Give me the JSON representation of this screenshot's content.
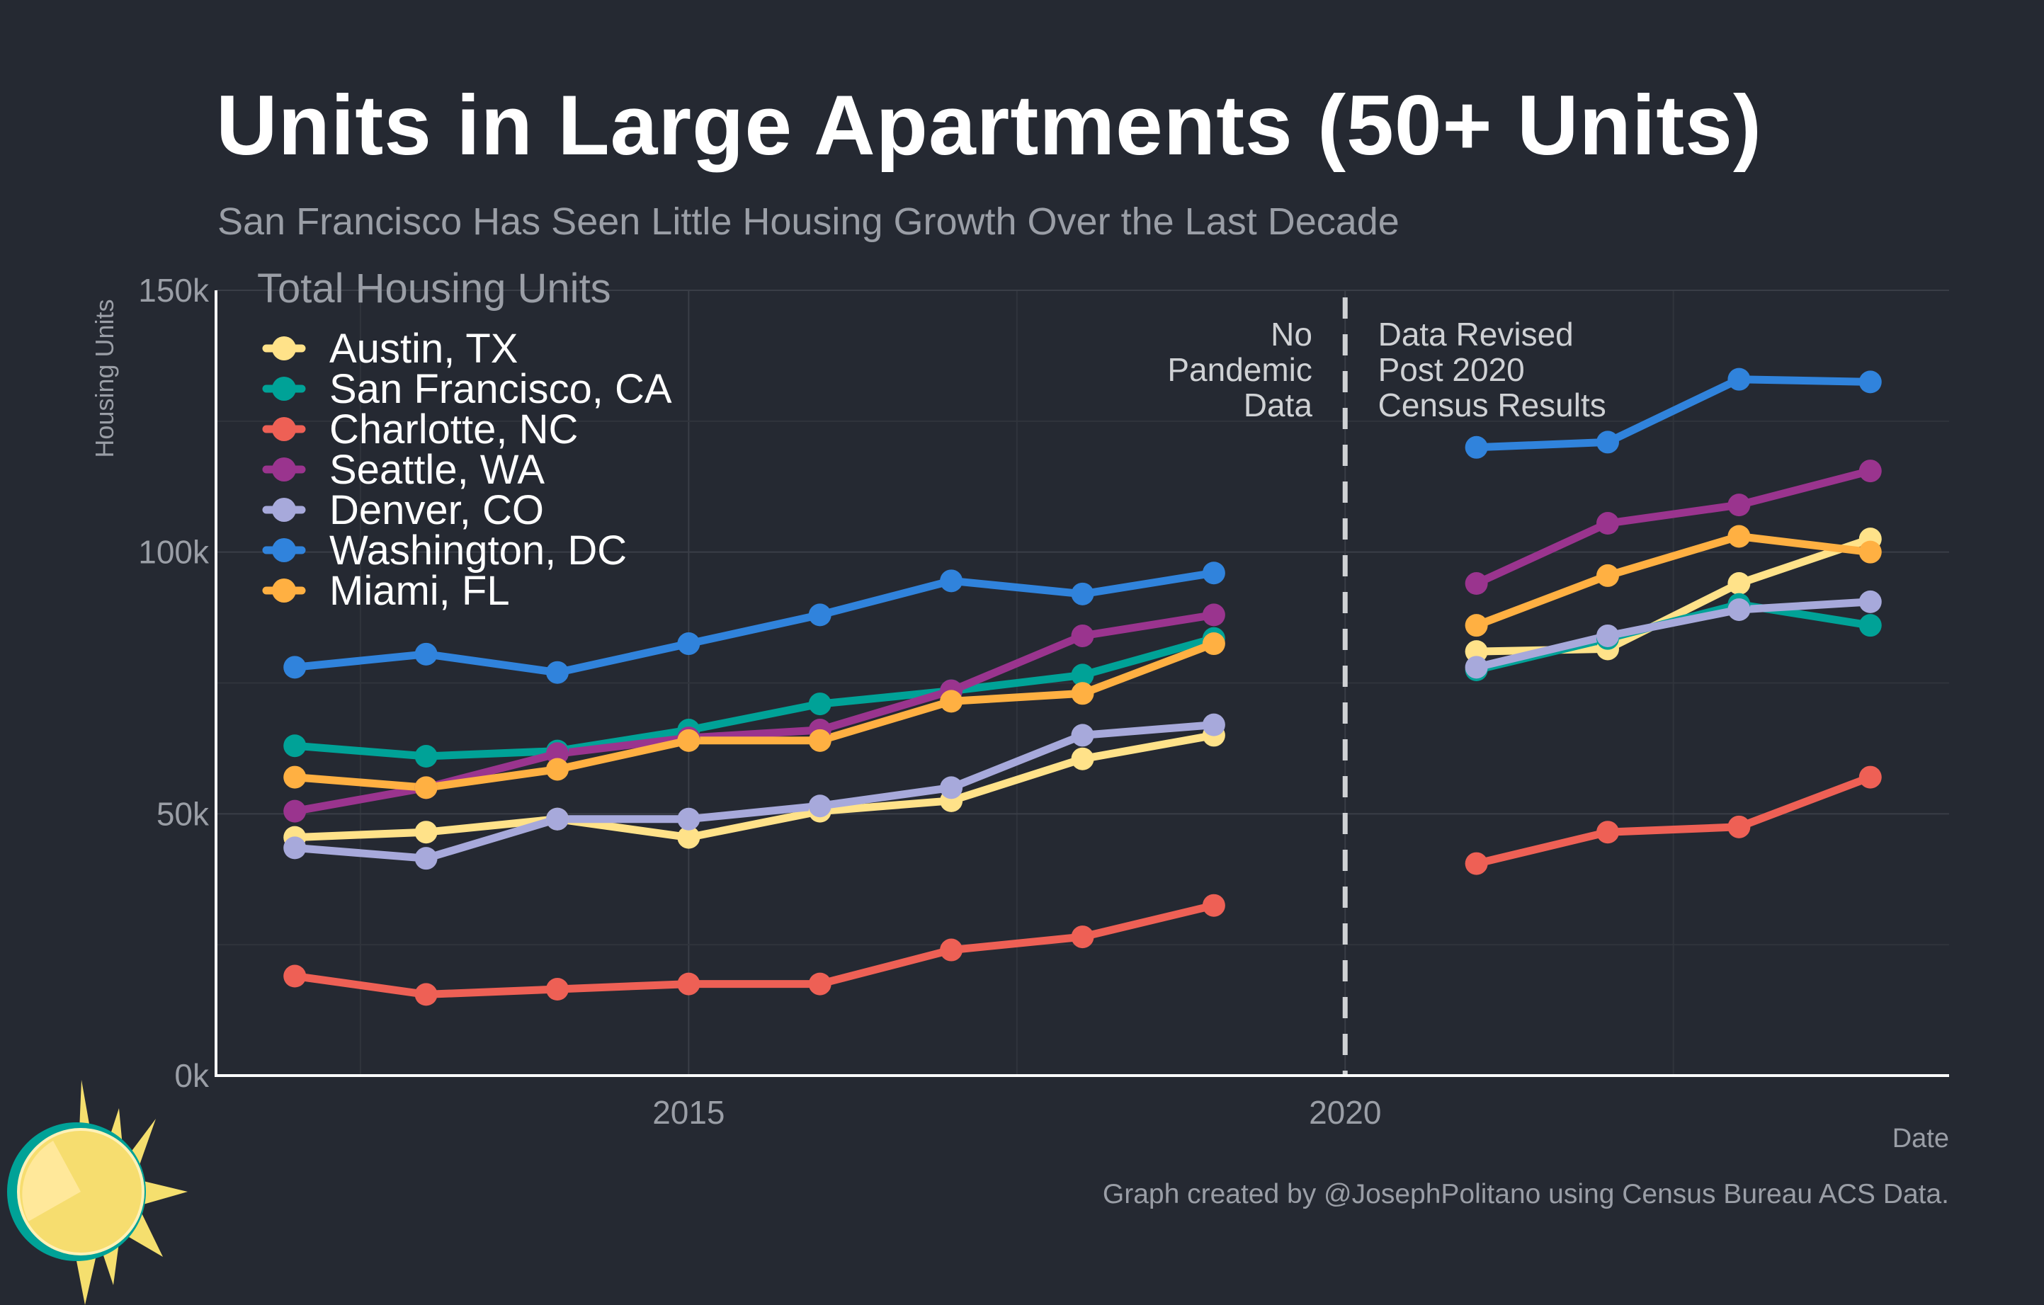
{
  "header": {
    "title": "Units in Large Apartments (50+ Units)",
    "subtitle": "San Francisco Has Seen Little Housing Growth Over the Last Decade"
  },
  "footer": {
    "caption": "Graph created by @JosephPolitano using Census Bureau ACS Data."
  },
  "chart_data": {
    "type": "line",
    "title": "Units in Large Apartments (50+ Units)",
    "subtitle": "San Francisco Has Seen Little Housing Growth Over the Last Decade",
    "xlabel": "Date",
    "ylabel": "Housing Units",
    "xlim": [
      2011.4,
      2024.6
    ],
    "ylim": [
      0,
      150000
    ],
    "x_ticks": [
      {
        "value": 2015,
        "label": "2015"
      },
      {
        "value": 2020,
        "label": "2020"
      }
    ],
    "x_minor_grid": [
      2012.5,
      2017.5,
      2022.5
    ],
    "y_ticks": [
      {
        "value": 0,
        "label": "0k"
      },
      {
        "value": 50000,
        "label": "50k"
      },
      {
        "value": 100000,
        "label": "100k"
      },
      {
        "value": 150000,
        "label": "150k"
      }
    ],
    "y_minor_grid": [
      25000,
      75000,
      125000
    ],
    "grid": true,
    "legend_title": "Total Housing Units",
    "legend_position": "top-left",
    "annotations": [
      {
        "x": 2020,
        "style": "dashed-vertical-line",
        "color": "#cfd1d4"
      },
      {
        "text": [
          "No",
          "Pandemic",
          "Data"
        ],
        "align": "right",
        "anchor_x": 2019.75
      },
      {
        "text": [
          "Data Revised",
          "Post 2020",
          "Census Results"
        ],
        "align": "left",
        "anchor_x": 2020.25
      }
    ],
    "series": [
      {
        "name": "Austin, TX",
        "color": "#ffe289",
        "points": [
          [
            2012,
            45500
          ],
          [
            2013,
            46500
          ],
          [
            2014,
            49000
          ],
          [
            2015,
            45500
          ],
          [
            2016,
            50500
          ],
          [
            2017,
            52500
          ],
          [
            2018,
            60500
          ],
          [
            2019,
            65000
          ],
          [
            2021,
            81000
          ],
          [
            2022,
            81500
          ],
          [
            2023,
            94000
          ],
          [
            2024,
            102500
          ]
        ]
      },
      {
        "name": "San Francisco, CA",
        "color": "#00a297",
        "points": [
          [
            2012,
            63000
          ],
          [
            2013,
            61000
          ],
          [
            2014,
            62000
          ],
          [
            2015,
            66000
          ],
          [
            2016,
            71000
          ],
          [
            2017,
            73500
          ],
          [
            2018,
            76500
          ],
          [
            2019,
            83500
          ],
          [
            2021,
            77500
          ],
          [
            2022,
            83500
          ],
          [
            2023,
            90000
          ],
          [
            2024,
            86000
          ]
        ]
      },
      {
        "name": "Charlotte, NC",
        "color": "#ee6055",
        "points": [
          [
            2012,
            19000
          ],
          [
            2013,
            15500
          ],
          [
            2014,
            16500
          ],
          [
            2015,
            17500
          ],
          [
            2016,
            17500
          ],
          [
            2017,
            24000
          ],
          [
            2018,
            26500
          ],
          [
            2019,
            32500
          ],
          [
            2021,
            40500
          ],
          [
            2022,
            46500
          ],
          [
            2023,
            47500
          ],
          [
            2024,
            57000
          ]
        ]
      },
      {
        "name": "Seattle, WA",
        "color": "#9a348e",
        "points": [
          [
            2012,
            50500
          ],
          [
            2013,
            55000
          ],
          [
            2014,
            61500
          ],
          [
            2015,
            64500
          ],
          [
            2016,
            66000
          ],
          [
            2017,
            73500
          ],
          [
            2018,
            84000
          ],
          [
            2019,
            88000
          ],
          [
            2021,
            94000
          ],
          [
            2022,
            105500
          ],
          [
            2023,
            109000
          ],
          [
            2024,
            115500
          ]
        ]
      },
      {
        "name": "Denver, CO",
        "color": "#a7a9db",
        "points": [
          [
            2012,
            43500
          ],
          [
            2013,
            41500
          ],
          [
            2014,
            49000
          ],
          [
            2015,
            49000
          ],
          [
            2016,
            51500
          ],
          [
            2017,
            55000
          ],
          [
            2018,
            65000
          ],
          [
            2019,
            67000
          ],
          [
            2021,
            78000
          ],
          [
            2022,
            84000
          ],
          [
            2023,
            89000
          ],
          [
            2024,
            90500
          ]
        ]
      },
      {
        "name": "Washington, DC",
        "color": "#3083dc",
        "points": [
          [
            2012,
            78000
          ],
          [
            2013,
            80500
          ],
          [
            2014,
            77000
          ],
          [
            2015,
            82500
          ],
          [
            2016,
            88000
          ],
          [
            2017,
            94500
          ],
          [
            2018,
            92000
          ],
          [
            2019,
            96000
          ],
          [
            2021,
            120000
          ],
          [
            2022,
            121000
          ],
          [
            2023,
            133000
          ],
          [
            2024,
            132500
          ]
        ]
      },
      {
        "name": "Miami, FL",
        "color": "#ffb042",
        "points": [
          [
            2012,
            57000
          ],
          [
            2013,
            55000
          ],
          [
            2014,
            58500
          ],
          [
            2015,
            64000
          ],
          [
            2016,
            64000
          ],
          [
            2017,
            71500
          ],
          [
            2018,
            73000
          ],
          [
            2019,
            82500
          ],
          [
            2021,
            86000
          ],
          [
            2022,
            95500
          ],
          [
            2023,
            103000
          ],
          [
            2024,
            100000
          ]
        ]
      }
    ]
  }
}
